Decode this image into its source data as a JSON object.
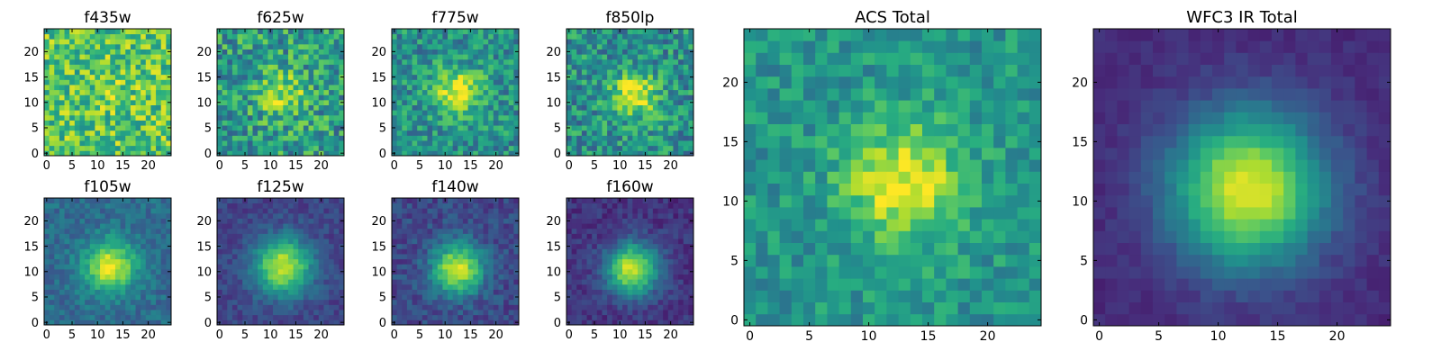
{
  "chart_data": [
    {
      "type": "heatmap",
      "title": "f435w",
      "xticks": [
        0,
        5,
        10,
        15,
        20
      ],
      "yticks": [
        0,
        5,
        10,
        15,
        20
      ],
      "xlim": [
        -0.5,
        24.5
      ],
      "ylim": [
        -0.5,
        24.5
      ],
      "grid_size": 25,
      "peak": [
        12.5,
        12.5
      ],
      "sigma": 4,
      "amplitude": 0.05,
      "background": 0.72,
      "noise": 0.24
    },
    {
      "type": "heatmap",
      "title": "f625w",
      "xticks": [
        0,
        5,
        10,
        15,
        20
      ],
      "yticks": [
        0,
        5,
        10,
        15,
        20
      ],
      "xlim": [
        -0.5,
        24.5
      ],
      "ylim": [
        -0.5,
        24.5
      ],
      "grid_size": 25,
      "peak": [
        12.5,
        11.5
      ],
      "sigma": 3,
      "amplitude": 0.35,
      "background": 0.55,
      "noise": 0.25
    },
    {
      "type": "heatmap",
      "title": "f775w",
      "xticks": [
        0,
        5,
        10,
        15,
        20
      ],
      "yticks": [
        0,
        5,
        10,
        15,
        20
      ],
      "xlim": [
        -0.5,
        24.5
      ],
      "ylim": [
        -0.5,
        24.5
      ],
      "grid_size": 25,
      "peak": [
        12.5,
        12.0
      ],
      "sigma": 3.2,
      "amplitude": 0.5,
      "background": 0.5,
      "noise": 0.2
    },
    {
      "type": "heatmap",
      "title": "f850lp",
      "xticks": [
        0,
        5,
        10,
        15,
        20
      ],
      "yticks": [
        0,
        5,
        10,
        15,
        20
      ],
      "xlim": [
        -0.5,
        24.5
      ],
      "ylim": [
        -0.5,
        24.5
      ],
      "grid_size": 25,
      "peak": [
        13.0,
        11.5
      ],
      "sigma": 3.2,
      "amplitude": 0.5,
      "background": 0.5,
      "noise": 0.22
    },
    {
      "type": "heatmap",
      "title": "f105w",
      "xticks": [
        0,
        5,
        10,
        15,
        20
      ],
      "yticks": [
        0,
        5,
        10,
        15,
        20
      ],
      "xlim": [
        -0.5,
        24.5
      ],
      "ylim": [
        -0.5,
        24.5
      ],
      "grid_size": 25,
      "peak": [
        12.5,
        11.0
      ],
      "sigma": 3.5,
      "amplitude": 0.62,
      "background": 0.35,
      "noise": 0.1
    },
    {
      "type": "heatmap",
      "title": "f125w",
      "xticks": [
        0,
        5,
        10,
        15,
        20
      ],
      "yticks": [
        0,
        5,
        10,
        15,
        20
      ],
      "xlim": [
        -0.5,
        24.5
      ],
      "ylim": [
        -0.5,
        24.5
      ],
      "grid_size": 25,
      "peak": [
        12.5,
        11.0
      ],
      "sigma": 4,
      "amplitude": 0.72,
      "background": 0.2,
      "noise": 0.08
    },
    {
      "type": "heatmap",
      "title": "f140w",
      "xticks": [
        0,
        5,
        10,
        15,
        20
      ],
      "yticks": [
        0,
        5,
        10,
        15,
        20
      ],
      "xlim": [
        -0.5,
        24.5
      ],
      "ylim": [
        -0.5,
        24.5
      ],
      "grid_size": 25,
      "peak": [
        12.5,
        10.5
      ],
      "sigma": 3.5,
      "amplitude": 0.72,
      "background": 0.22,
      "noise": 0.1
    },
    {
      "type": "heatmap",
      "title": "f160w",
      "xticks": [
        0,
        5,
        10,
        15,
        20
      ],
      "yticks": [
        0,
        5,
        10,
        15,
        20
      ],
      "xlim": [
        -0.5,
        24.5
      ],
      "ylim": [
        -0.5,
        24.5
      ],
      "grid_size": 25,
      "peak": [
        12.5,
        10.5
      ],
      "sigma": 3.5,
      "amplitude": 0.8,
      "background": 0.15,
      "noise": 0.08
    },
    {
      "type": "heatmap",
      "title": "ACS Total",
      "xticks": [
        0,
        5,
        10,
        15,
        20
      ],
      "yticks": [
        0,
        5,
        10,
        15,
        20
      ],
      "xlim": [
        -0.5,
        24.5
      ],
      "ylim": [
        -0.5,
        24.5
      ],
      "grid_size": 25,
      "peak": [
        13.0,
        11.5
      ],
      "sigma": 3.5,
      "amplitude": 0.45,
      "background": 0.52,
      "noise": 0.14
    },
    {
      "type": "heatmap",
      "title": "WFC3 IR Total",
      "xticks": [
        0,
        5,
        10,
        15,
        20
      ],
      "yticks": [
        0,
        5,
        10,
        15,
        20
      ],
      "xlim": [
        -0.5,
        24.5
      ],
      "ylim": [
        -0.5,
        24.5
      ],
      "grid_size": 25,
      "peak": [
        12.5,
        11.0
      ],
      "sigma": 4.5,
      "amplitude": 0.85,
      "background": 0.12,
      "noise": 0.04
    }
  ],
  "colormap": [
    "#440154",
    "#472d7b",
    "#3b528b",
    "#2c728e",
    "#21918c",
    "#28ae80",
    "#5ec962",
    "#addc30",
    "#fde725"
  ]
}
